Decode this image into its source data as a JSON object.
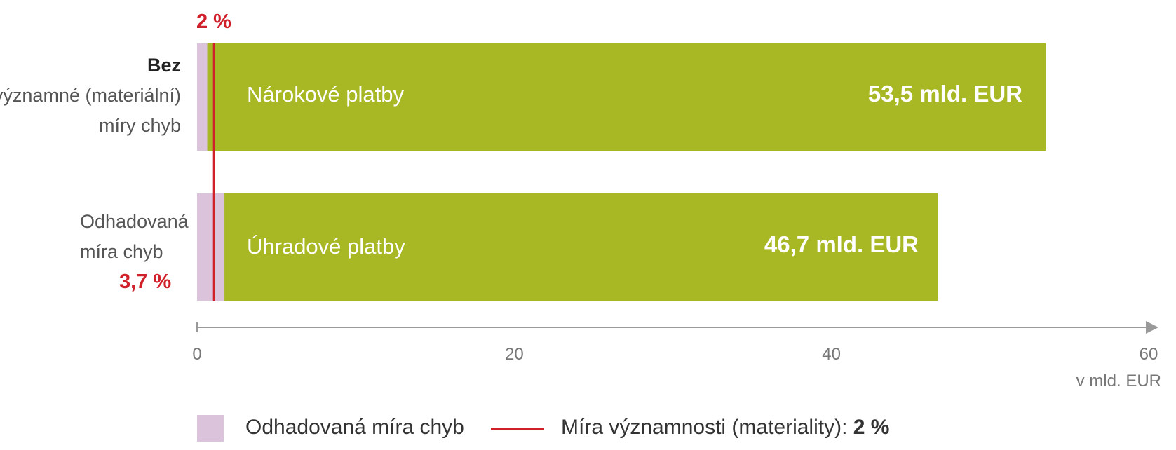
{
  "colors": {
    "bar": "#a8b824",
    "error": "#dcc3dc",
    "materiality": "#d0202a",
    "axis": "#999999"
  },
  "chart_data": {
    "type": "bar",
    "orientation": "horizontal",
    "unit_label": "v mld. EUR",
    "xlim": [
      0,
      60
    ],
    "ticks": [
      "0",
      "20",
      "40",
      "60"
    ],
    "tick_values": [
      0,
      20,
      40,
      60
    ],
    "materiality_label": "2 %",
    "materiality_percent": 2,
    "categories": [
      {
        "label_bold": "Bez",
        "label_lines": [
          "významné (materiální)",
          "míry chyb"
        ],
        "bar_name": "Nárokové platby",
        "value": 53.5,
        "value_label": "53,5 mld. EUR",
        "error_percent": 1.2
      },
      {
        "label_lines": [
          "Odhadovaná",
          "míra chyb"
        ],
        "label_rate": "3,7 %",
        "bar_name": "Úhradové platby",
        "value": 46.7,
        "value_label": "46,7 mld. EUR",
        "error_percent": 3.7
      }
    ],
    "legend": {
      "error_label": "Odhadovaná míra chyb",
      "materiality_prefix": "Míra významnosti (materiality): ",
      "materiality_value": "2 %"
    }
  }
}
